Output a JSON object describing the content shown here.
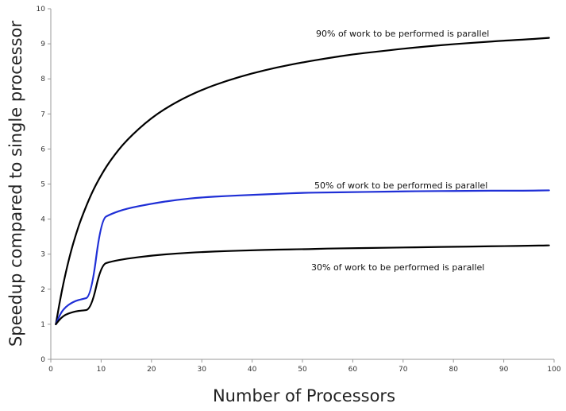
{
  "chart_data": {
    "type": "line",
    "title": "",
    "xlabel": "Number of Processors",
    "ylabel": "Speedup compared to single processor",
    "xlim": [
      0,
      100
    ],
    "ylim": [
      0,
      10
    ],
    "x_ticks": [
      0,
      10,
      20,
      30,
      40,
      50,
      60,
      70,
      80,
      90,
      100
    ],
    "y_ticks": [
      0,
      1,
      2,
      3,
      4,
      5,
      6,
      7,
      8,
      9,
      10
    ],
    "grid": false,
    "legend": "none",
    "x": [
      1,
      2,
      3,
      4,
      5,
      6,
      8,
      10,
      12,
      15,
      20,
      25,
      30,
      35,
      40,
      45,
      50,
      55,
      60,
      65,
      70,
      75,
      80,
      85,
      90,
      95,
      99
    ],
    "series": [
      {
        "color": "#000000",
        "values": [
          1.0,
          1.82,
          2.5,
          3.08,
          3.57,
          4.0,
          4.71,
          5.26,
          5.71,
          6.25,
          6.9,
          7.35,
          7.69,
          7.95,
          8.16,
          8.33,
          8.47,
          8.59,
          8.7,
          8.78,
          8.86,
          8.93,
          8.99,
          9.04,
          9.09,
          9.13,
          9.17
        ]
      },
      {
        "color": "#1f2fd6",
        "values": [
          1.0,
          1.33,
          1.5,
          1.6,
          1.67,
          1.71,
          1.78,
          4.0,
          4.15,
          4.3,
          4.44,
          4.55,
          4.62,
          4.66,
          4.69,
          4.72,
          4.75,
          4.76,
          4.77,
          4.78,
          4.79,
          4.8,
          4.8,
          4.81,
          4.81,
          4.81,
          4.82
        ]
      },
      {
        "color": "#000000",
        "values": [
          1.0,
          1.18,
          1.28,
          1.33,
          1.37,
          1.39,
          1.42,
          2.7,
          2.79,
          2.87,
          2.96,
          3.02,
          3.06,
          3.09,
          3.11,
          3.13,
          3.14,
          3.16,
          3.17,
          3.18,
          3.19,
          3.2,
          3.21,
          3.22,
          3.23,
          3.24,
          3.25
        ]
      }
    ],
    "annotations": [
      "90% of work to be performed is parallel",
      "50% of work to be performed is parallel",
      "30% of work to be performed is parallel"
    ]
  }
}
